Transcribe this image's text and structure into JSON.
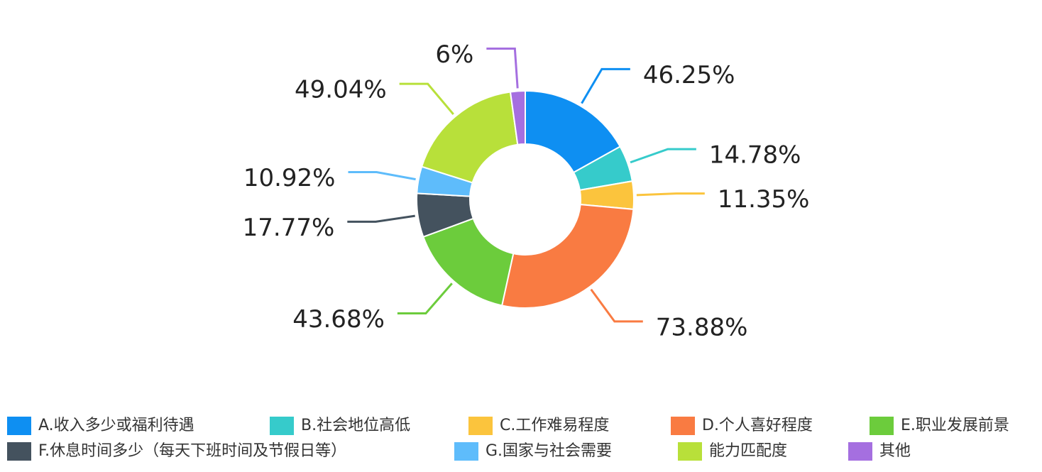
{
  "chart_data": {
    "type": "pie",
    "categories": [
      "A.收入多少或福利待遇",
      "B.社会地位高低",
      "C.工作难易程度",
      "D.个人喜好程度",
      "E.职业发展前景",
      "F.休息时间多少（每天下班时间及节假日等）",
      "G.国家与社会需要",
      "能力匹配度",
      "其他"
    ],
    "values": [
      46.25,
      14.78,
      11.35,
      73.88,
      43.68,
      17.77,
      10.92,
      49.04,
      6
    ],
    "value_labels": [
      "46.25%",
      "14.78%",
      "11.35%",
      "73.88%",
      "43.68%",
      "17.77%",
      "10.92%",
      "49.04%",
      "6%"
    ],
    "colors": [
      "#0e8ff2",
      "#36cbcb",
      "#fbc43d",
      "#f97b42",
      "#6ccc3c",
      "#44525e",
      "#5ebcfb",
      "#b8e03a",
      "#a56fe0"
    ]
  }
}
